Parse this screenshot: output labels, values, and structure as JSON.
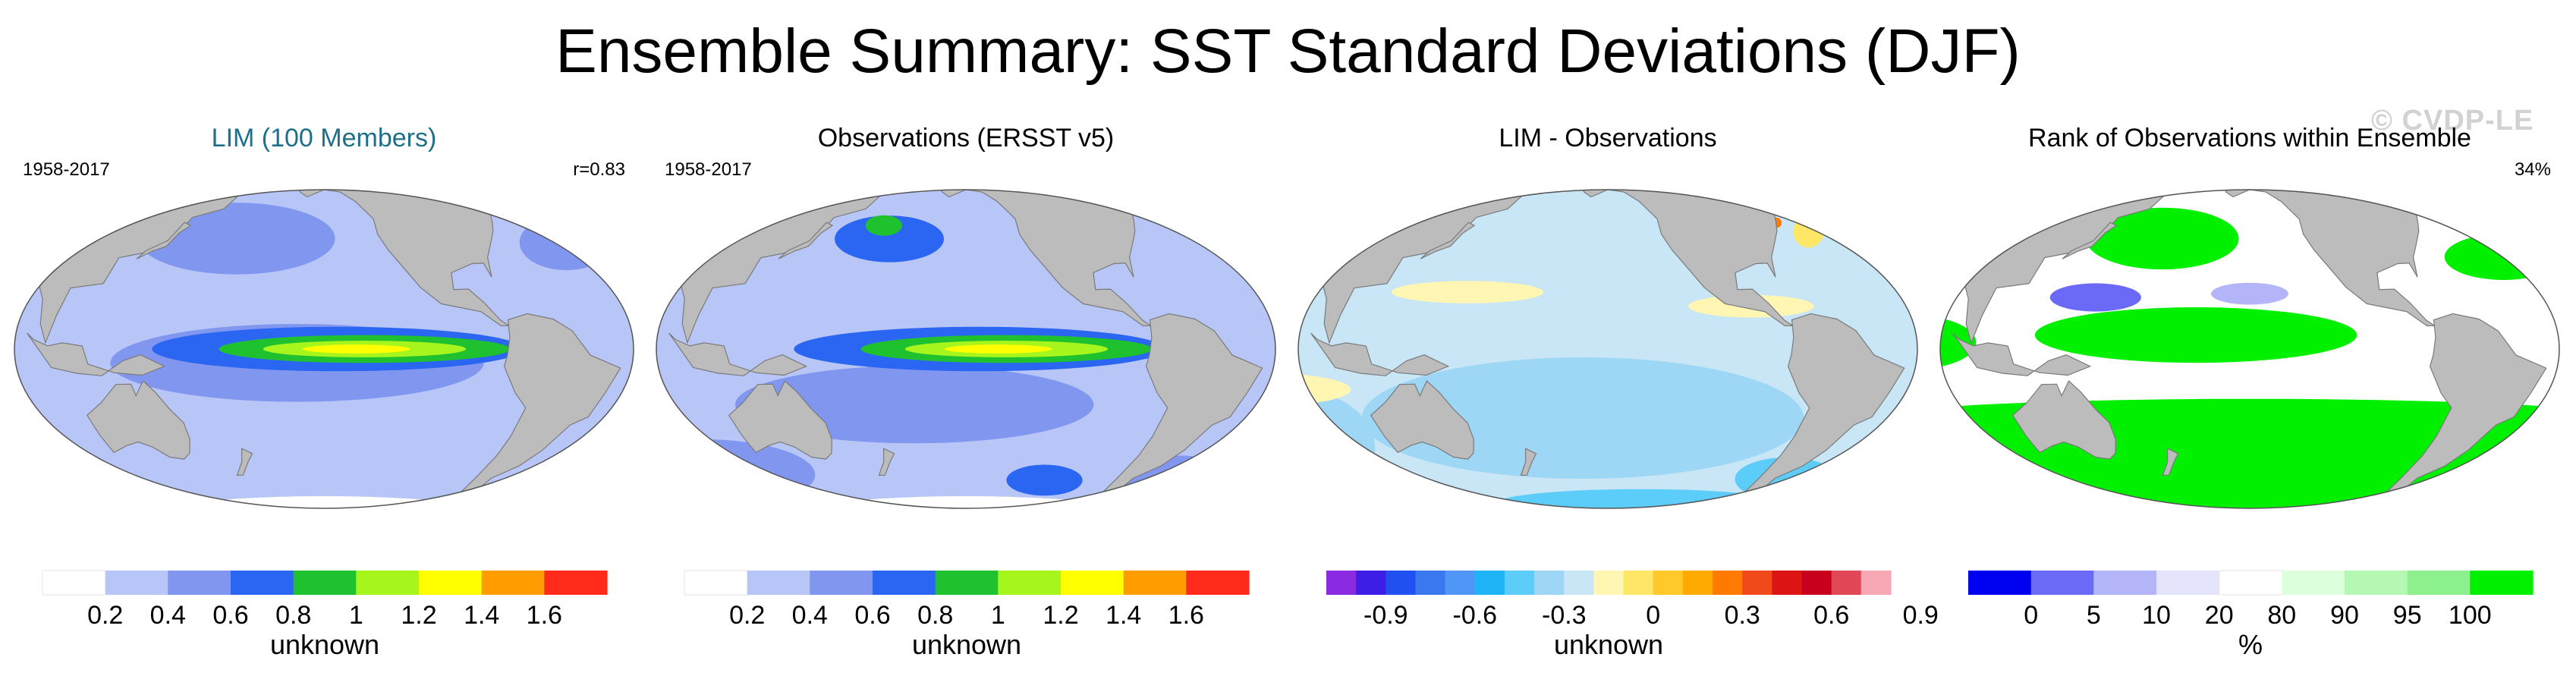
{
  "title": "Ensemble Summary: SST Standard Deviations (DJF)",
  "watermark": "© CVDP-LE",
  "land_color": "#bcbcbc",
  "chart_data": [
    {
      "type": "heatmap",
      "title": "LIM (100 Members)",
      "title_color": "#1f6f8b",
      "period": "1958-2017",
      "stat": "r=0.83",
      "map_style": "lim",
      "colorbar": {
        "colors": [
          "#ffffff",
          "#b7c6f6",
          "#8197ef",
          "#2b66f2",
          "#1fc22e",
          "#a6f51c",
          "#ffff00",
          "#ff9c00",
          "#ff2a1a"
        ],
        "tick_labels": [
          "0.2",
          "0.4",
          "0.6",
          "0.8",
          "1",
          "1.2",
          "1.4",
          "1.6"
        ],
        "label": "unknown"
      }
    },
    {
      "type": "heatmap",
      "title": "Observations (ERSST v5)",
      "title_color": "#000000",
      "period": "1958-2017",
      "stat": "",
      "map_style": "obs",
      "colorbar": {
        "colors": [
          "#ffffff",
          "#b7c6f6",
          "#8197ef",
          "#2b66f2",
          "#1fc22e",
          "#a6f51c",
          "#ffff00",
          "#ff9c00",
          "#ff2a1a"
        ],
        "tick_labels": [
          "0.2",
          "0.4",
          "0.6",
          "0.8",
          "1",
          "1.2",
          "1.4",
          "1.6"
        ],
        "label": "unknown"
      }
    },
    {
      "type": "heatmap",
      "title": "LIM - Observations",
      "title_color": "#000000",
      "period": "",
      "stat": "",
      "map_style": "diff",
      "colorbar": {
        "colors": [
          "#8a2be2",
          "#3c1ee6",
          "#2050f0",
          "#3a78f0",
          "#4f96f6",
          "#1eb4f5",
          "#5ccdf8",
          "#9ed6f5",
          "#c8e6f6",
          "#fff6b4",
          "#ffe666",
          "#ffc82b",
          "#ffaa00",
          "#ff7a00",
          "#f04a1a",
          "#dc1414",
          "#c8001e",
          "#e04858",
          "#f8a8b4"
        ],
        "tick_labels": [
          "-0.9",
          "-0.6",
          "-0.3",
          "0",
          "0.3",
          "0.6",
          "0.9"
        ],
        "tick_edges": [
          2,
          5,
          8,
          11,
          14,
          17,
          20
        ],
        "label": "unknown"
      }
    },
    {
      "type": "heatmap",
      "title": "Rank of Observations within Ensemble",
      "title_color": "#000000",
      "period": "",
      "stat": "34%",
      "map_style": "rank",
      "colorbar": {
        "colors": [
          "#0000f0",
          "#6a6af6",
          "#b4b4f8",
          "#e4e4fc",
          "#ffffff",
          "#dcffdc",
          "#b4f8b4",
          "#8cf08c",
          "#00f000"
        ],
        "tick_labels": [
          "0",
          "5",
          "10",
          "20",
          "80",
          "90",
          "95",
          "100"
        ],
        "label": "%"
      }
    }
  ]
}
